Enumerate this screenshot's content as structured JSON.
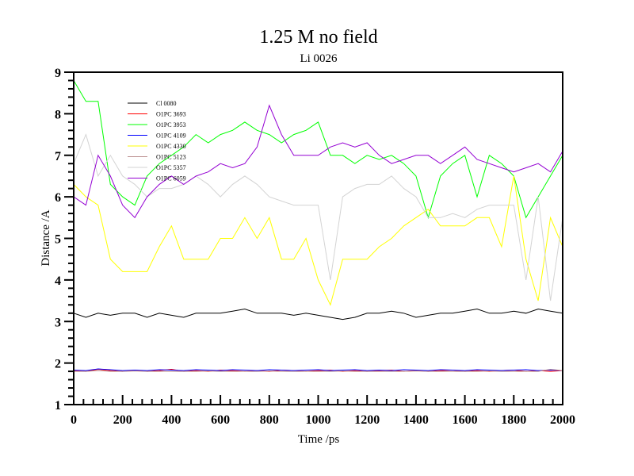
{
  "chart_data": {
    "type": "line",
    "title": "1.25 M no field",
    "subtitle": "Li 0026",
    "xlabel": "Time /ps",
    "ylabel": "Distance /A",
    "xlim": [
      0,
      2000
    ],
    "ylim": [
      1,
      9
    ],
    "xticks": [
      "0",
      "200",
      "400",
      "600",
      "800",
      "1000",
      "1200",
      "1400",
      "1600",
      "1800",
      "2000"
    ],
    "yticks": [
      "1",
      "2",
      "3",
      "4",
      "5",
      "6",
      "7",
      "8",
      "9"
    ],
    "grid": false,
    "legend_position": "top-left",
    "x": [
      0,
      50,
      100,
      150,
      200,
      250,
      300,
      350,
      400,
      450,
      500,
      550,
      600,
      650,
      700,
      750,
      800,
      850,
      900,
      950,
      1000,
      1050,
      1100,
      1150,
      1200,
      1250,
      1300,
      1350,
      1400,
      1450,
      1500,
      1550,
      1600,
      1650,
      1700,
      1750,
      1800,
      1850,
      1900,
      1950,
      2000
    ],
    "series": [
      {
        "name": "Cl 0080",
        "color": "#000000",
        "values": [
          3.2,
          3.1,
          3.2,
          3.15,
          3.2,
          3.2,
          3.1,
          3.2,
          3.15,
          3.1,
          3.2,
          3.2,
          3.2,
          3.25,
          3.3,
          3.2,
          3.2,
          3.2,
          3.15,
          3.2,
          3.15,
          3.1,
          3.05,
          3.1,
          3.2,
          3.2,
          3.25,
          3.2,
          3.1,
          3.15,
          3.2,
          3.2,
          3.25,
          3.3,
          3.2,
          3.2,
          3.25,
          3.2,
          3.3,
          3.25,
          3.2
        ]
      },
      {
        "name": "O1PC 3693",
        "color": "#ff0000",
        "values": [
          1.82,
          1.8,
          1.85,
          1.82,
          1.8,
          1.83,
          1.8,
          1.82,
          1.85,
          1.8,
          1.82,
          1.8,
          1.83,
          1.82,
          1.8,
          1.82,
          1.8,
          1.83,
          1.82,
          1.8,
          1.82,
          1.83,
          1.8,
          1.82,
          1.8,
          1.82,
          1.83,
          1.8,
          1.82,
          1.8,
          1.82,
          1.83,
          1.8,
          1.82,
          1.8,
          1.82,
          1.83,
          1.8,
          1.82,
          1.8,
          1.82
        ]
      },
      {
        "name": "O1PC 3953",
        "color": "#00ff00",
        "values": [
          8.8,
          8.3,
          8.3,
          6.3,
          6.0,
          5.8,
          6.5,
          6.8,
          7.0,
          7.2,
          7.5,
          7.3,
          7.5,
          7.6,
          7.8,
          7.6,
          7.5,
          7.3,
          7.5,
          7.6,
          7.8,
          7.0,
          7.0,
          6.8,
          7.0,
          6.9,
          7.0,
          6.8,
          6.5,
          5.5,
          6.5,
          6.8,
          7.0,
          6.0,
          7.0,
          6.8,
          6.5,
          5.5,
          6.0,
          6.5,
          7.0
        ]
      },
      {
        "name": "O1PC 4109",
        "color": "#0000ff",
        "values": [
          1.83,
          1.82,
          1.86,
          1.84,
          1.82,
          1.83,
          1.82,
          1.84,
          1.83,
          1.82,
          1.84,
          1.83,
          1.82,
          1.84,
          1.83,
          1.82,
          1.84,
          1.83,
          1.82,
          1.83,
          1.84,
          1.82,
          1.83,
          1.84,
          1.82,
          1.83,
          1.82,
          1.84,
          1.83,
          1.82,
          1.84,
          1.83,
          1.82,
          1.84,
          1.83,
          1.82,
          1.83,
          1.84,
          1.82,
          1.83,
          1.82
        ]
      },
      {
        "name": "O1PC 4330",
        "color": "#ffff00",
        "values": [
          6.3,
          6.0,
          5.8,
          4.5,
          4.2,
          4.2,
          4.2,
          4.8,
          5.3,
          4.5,
          4.5,
          4.5,
          5.0,
          5.0,
          5.5,
          5.0,
          5.5,
          4.5,
          4.5,
          5.0,
          4.0,
          3.4,
          4.5,
          4.5,
          4.5,
          4.8,
          5.0,
          5.3,
          5.5,
          5.7,
          5.3,
          5.3,
          5.3,
          5.5,
          5.5,
          4.8,
          6.5,
          4.5,
          3.5,
          5.5,
          4.8
        ]
      },
      {
        "name": "O1PC 5123",
        "color": "#bc8f8f",
        "values": [
          1.8,
          1.8,
          1.82,
          1.8,
          1.8,
          1.81,
          1.8,
          1.8,
          1.8,
          1.8,
          1.8,
          1.81,
          1.8,
          1.8,
          1.8,
          1.8,
          1.81,
          1.8,
          1.8,
          1.8,
          1.8,
          1.8,
          1.81,
          1.8,
          1.8,
          1.8,
          1.8,
          1.8,
          1.81,
          1.8,
          1.8,
          1.8,
          1.8,
          1.8,
          1.81,
          1.8,
          1.8,
          1.8,
          1.8,
          1.85,
          1.82
        ]
      },
      {
        "name": "O1PC 5357",
        "color": "#d3d3d3",
        "values": [
          6.8,
          7.5,
          6.5,
          7.0,
          6.5,
          6.3,
          6.0,
          6.2,
          6.2,
          6.3,
          6.5,
          6.3,
          6.0,
          6.3,
          6.5,
          6.3,
          6.0,
          5.9,
          5.8,
          5.8,
          5.8,
          4.0,
          6.0,
          6.2,
          6.3,
          6.3,
          6.5,
          6.2,
          6.0,
          5.5,
          5.5,
          5.6,
          5.5,
          5.7,
          5.8,
          5.8,
          5.8,
          4.0,
          6.0,
          3.5,
          5.5
        ]
      },
      {
        "name": "O1PC 6059",
        "color": "#9400d3",
        "values": [
          6.0,
          5.8,
          7.0,
          6.5,
          5.8,
          5.5,
          6.0,
          6.3,
          6.5,
          6.3,
          6.5,
          6.6,
          6.8,
          6.7,
          6.8,
          7.2,
          8.2,
          7.5,
          7.0,
          7.0,
          7.0,
          7.2,
          7.3,
          7.2,
          7.3,
          7.0,
          6.8,
          6.9,
          7.0,
          7.0,
          6.8,
          7.0,
          7.2,
          6.9,
          6.8,
          6.7,
          6.6,
          6.7,
          6.8,
          6.6,
          7.1
        ]
      }
    ]
  }
}
